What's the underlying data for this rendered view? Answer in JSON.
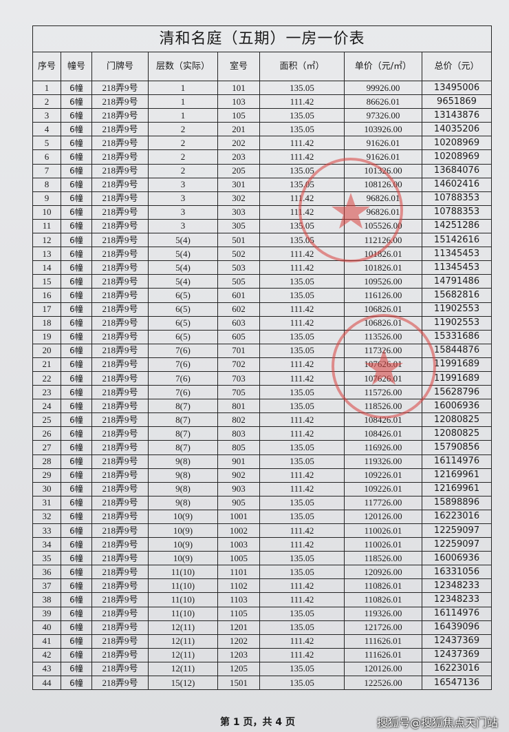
{
  "document": {
    "title": "清和名庭（五期）一房一价表",
    "headers": [
      "序号",
      "幢号",
      "门牌号",
      "层数（实际）",
      "室号",
      "面积（㎡）",
      "单价（元/㎡）",
      "总价（元）"
    ],
    "rows": [
      [
        "1",
        "6幢",
        "218弄9号",
        "1",
        "101",
        "135.05",
        "99926.00",
        "13495006"
      ],
      [
        "2",
        "6幢",
        "218弄9号",
        "1",
        "103",
        "111.42",
        "86626.01",
        "9651869"
      ],
      [
        "3",
        "6幢",
        "218弄9号",
        "1",
        "105",
        "135.05",
        "97326.00",
        "13143876"
      ],
      [
        "4",
        "6幢",
        "218弄9号",
        "2",
        "201",
        "135.05",
        "103926.00",
        "14035206"
      ],
      [
        "5",
        "6幢",
        "218弄9号",
        "2",
        "202",
        "111.42",
        "91626.01",
        "10208969"
      ],
      [
        "6",
        "6幢",
        "218弄9号",
        "2",
        "203",
        "111.42",
        "91626.01",
        "10208969"
      ],
      [
        "7",
        "6幢",
        "218弄9号",
        "2",
        "205",
        "135.05",
        "101326.00",
        "13684076"
      ],
      [
        "8",
        "6幢",
        "218弄9号",
        "3",
        "301",
        "135.05",
        "108126.00",
        "14602416"
      ],
      [
        "9",
        "6幢",
        "218弄9号",
        "3",
        "302",
        "111.42",
        "96826.01",
        "10788353"
      ],
      [
        "10",
        "6幢",
        "218弄9号",
        "3",
        "303",
        "111.42",
        "96826.01",
        "10788353"
      ],
      [
        "11",
        "6幢",
        "218弄9号",
        "3",
        "305",
        "135.05",
        "105526.00",
        "14251286"
      ],
      [
        "12",
        "6幢",
        "218弄9号",
        "5(4)",
        "501",
        "135.05",
        "112126.00",
        "15142616"
      ],
      [
        "13",
        "6幢",
        "218弄9号",
        "5(4)",
        "502",
        "111.42",
        "101826.01",
        "11345453"
      ],
      [
        "14",
        "6幢",
        "218弄9号",
        "5(4)",
        "503",
        "111.42",
        "101826.01",
        "11345453"
      ],
      [
        "15",
        "6幢",
        "218弄9号",
        "5(4)",
        "505",
        "135.05",
        "109526.00",
        "14791486"
      ],
      [
        "16",
        "6幢",
        "218弄9号",
        "6(5)",
        "601",
        "135.05",
        "116126.00",
        "15682816"
      ],
      [
        "17",
        "6幢",
        "218弄9号",
        "6(5)",
        "602",
        "111.42",
        "106826.01",
        "11902553"
      ],
      [
        "18",
        "6幢",
        "218弄9号",
        "6(5)",
        "603",
        "111.42",
        "106826.01",
        "11902553"
      ],
      [
        "19",
        "6幢",
        "218弄9号",
        "6(5)",
        "605",
        "135.05",
        "113526.00",
        "15331686"
      ],
      [
        "20",
        "6幢",
        "218弄9号",
        "7(6)",
        "701",
        "135.05",
        "117326.00",
        "15844876"
      ],
      [
        "21",
        "6幢",
        "218弄9号",
        "7(6)",
        "702",
        "111.42",
        "107626.01",
        "11991689"
      ],
      [
        "22",
        "6幢",
        "218弄9号",
        "7(6)",
        "703",
        "111.42",
        "107626.01",
        "11991689"
      ],
      [
        "23",
        "6幢",
        "218弄9号",
        "7(6)",
        "705",
        "135.05",
        "115726.00",
        "15628796"
      ],
      [
        "24",
        "6幢",
        "218弄9号",
        "8(7)",
        "801",
        "135.05",
        "118526.00",
        "16006936"
      ],
      [
        "25",
        "6幢",
        "218弄9号",
        "8(7)",
        "802",
        "111.42",
        "108426.01",
        "12080825"
      ],
      [
        "26",
        "6幢",
        "218弄9号",
        "8(7)",
        "803",
        "111.42",
        "108426.01",
        "12080825"
      ],
      [
        "27",
        "6幢",
        "218弄9号",
        "8(7)",
        "805",
        "135.05",
        "116926.00",
        "15790856"
      ],
      [
        "28",
        "6幢",
        "218弄9号",
        "9(8)",
        "901",
        "135.05",
        "119326.00",
        "16114976"
      ],
      [
        "29",
        "6幢",
        "218弄9号",
        "9(8)",
        "902",
        "111.42",
        "109226.01",
        "12169961"
      ],
      [
        "30",
        "6幢",
        "218弄9号",
        "9(8)",
        "903",
        "111.42",
        "109226.01",
        "12169961"
      ],
      [
        "31",
        "6幢",
        "218弄9号",
        "9(8)",
        "905",
        "135.05",
        "117726.00",
        "15898896"
      ],
      [
        "32",
        "6幢",
        "218弄9号",
        "10(9)",
        "1001",
        "135.05",
        "120126.00",
        "16223016"
      ],
      [
        "33",
        "6幢",
        "218弄9号",
        "10(9)",
        "1002",
        "111.42",
        "110026.01",
        "12259097"
      ],
      [
        "34",
        "6幢",
        "218弄9号",
        "10(9)",
        "1003",
        "111.42",
        "110026.01",
        "12259097"
      ],
      [
        "35",
        "6幢",
        "218弄9号",
        "10(9)",
        "1005",
        "135.05",
        "118526.00",
        "16006936"
      ],
      [
        "36",
        "6幢",
        "218弄9号",
        "11(10)",
        "1101",
        "135.05",
        "120926.00",
        "16331056"
      ],
      [
        "37",
        "6幢",
        "218弄9号",
        "11(10)",
        "1102",
        "111.42",
        "110826.01",
        "12348233"
      ],
      [
        "38",
        "6幢",
        "218弄9号",
        "11(10)",
        "1103",
        "111.42",
        "110826.01",
        "12348233"
      ],
      [
        "39",
        "6幢",
        "218弄9号",
        "11(10)",
        "1105",
        "135.05",
        "119326.00",
        "16114976"
      ],
      [
        "40",
        "6幢",
        "218弄9号",
        "12(11)",
        "1201",
        "135.05",
        "121726.00",
        "16439096"
      ],
      [
        "41",
        "6幢",
        "218弄9号",
        "12(11)",
        "1202",
        "111.42",
        "111626.01",
        "12437369"
      ],
      [
        "42",
        "6幢",
        "218弄9号",
        "12(11)",
        "1203",
        "111.42",
        "111626.01",
        "12437369"
      ],
      [
        "43",
        "6幢",
        "218弄9号",
        "12(11)",
        "1205",
        "135.05",
        "120126.00",
        "16223016"
      ],
      [
        "44",
        "6幢",
        "218弄9号",
        "15(12)",
        "1501",
        "135.05",
        "122526.00",
        "16547136"
      ]
    ],
    "footer": "第 1 页，共 4 页",
    "watermark": "搜狐号@搜狐焦点天门站",
    "stamp_color": "#d9423f"
  }
}
